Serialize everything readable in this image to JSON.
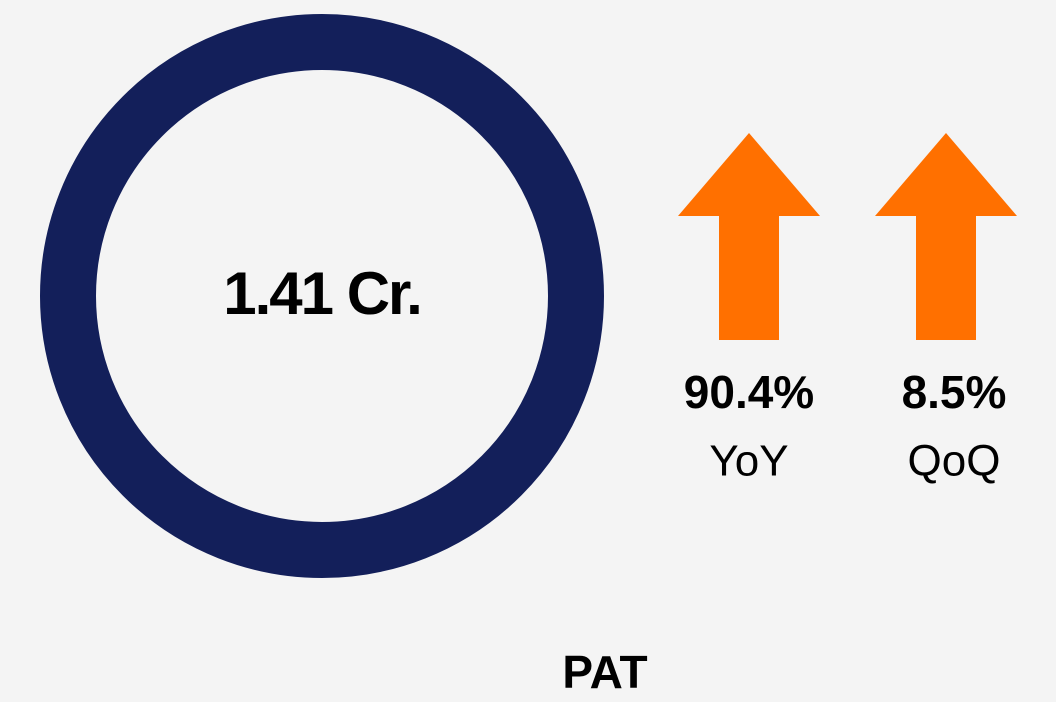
{
  "kpi": {
    "value": "1.41 Cr.",
    "label": "PAT",
    "changes": [
      {
        "value": "90.4%",
        "period": "YoY"
      },
      {
        "value": "8.5%",
        "period": "QoQ"
      }
    ]
  }
}
